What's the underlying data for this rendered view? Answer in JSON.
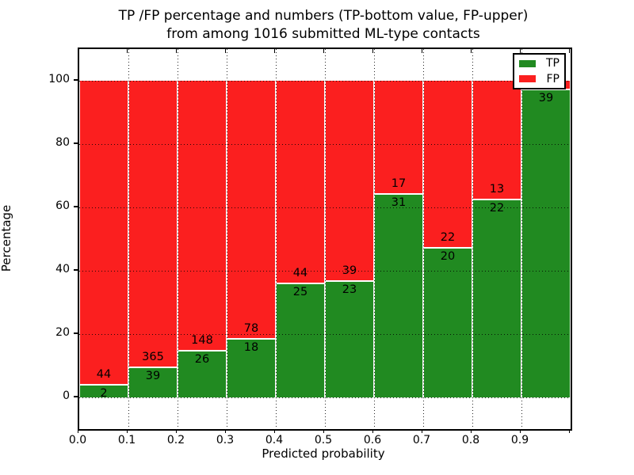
{
  "title": {
    "line1": "TP /FP percentage and numbers (TP-bottom value, FP-upper)",
    "line2": "from among 1016 submitted ML-type contacts"
  },
  "axes": {
    "x_label": "Predicted probability",
    "y_label": "Percentage"
  },
  "legend": {
    "items": [
      {
        "label": "TP",
        "color": "#218a21"
      },
      {
        "label": "FP",
        "color": "#fb1f1f"
      }
    ]
  },
  "chart_data": {
    "type": "bar",
    "stacked": true,
    "title": "TP /FP percentage and numbers (TP-bottom value, FP-upper) from among 1016 submitted ML-type contacts",
    "xlabel": "Predicted probability",
    "ylabel": "Percentage",
    "total_submitted": 1016,
    "xlim": [
      0.0,
      1.0
    ],
    "ylim": [
      -10,
      110
    ],
    "grid": "dotted, drawn over bars",
    "legend_position": "upper right",
    "bin_starts": [
      0.0,
      0.1,
      0.2,
      0.3,
      0.4,
      0.5,
      0.6,
      0.7,
      0.8,
      0.9
    ],
    "bin_width": 0.1,
    "series": [
      {
        "name": "TP",
        "color": "#218a21",
        "counts": [
          2,
          39,
          26,
          18,
          25,
          23,
          31,
          20,
          22,
          39
        ]
      },
      {
        "name": "FP",
        "color": "#fb1f1f",
        "counts": [
          44,
          365,
          148,
          78,
          44,
          39,
          17,
          22,
          13,
          null
        ]
      }
    ],
    "tp_percent": [
      4.35,
      9.65,
      14.94,
      18.75,
      36.23,
      37.1,
      64.58,
      47.62,
      62.86,
      97.5
    ],
    "tp_labels": [
      "2",
      "39",
      "26",
      "18",
      "25",
      "23",
      "31",
      "20",
      "22",
      "39"
    ],
    "fp_labels": [
      "44",
      "365",
      "148",
      "78",
      "44",
      "39",
      "17",
      "22",
      "13",
      ""
    ],
    "x_ticks": [
      {
        "pos": 0.0,
        "label": "0.0"
      },
      {
        "pos": 0.1,
        "label": "0.1"
      },
      {
        "pos": 0.2,
        "label": "0.2"
      },
      {
        "pos": 0.3,
        "label": "0.3"
      },
      {
        "pos": 0.4,
        "label": "0.4"
      },
      {
        "pos": 0.5,
        "label": "0.5"
      },
      {
        "pos": 0.6,
        "label": "0.6"
      },
      {
        "pos": 0.7,
        "label": "0.7"
      },
      {
        "pos": 0.8,
        "label": "0.8"
      },
      {
        "pos": 0.9,
        "label": "0.9"
      },
      {
        "pos": 1.0,
        "label": ""
      }
    ],
    "y_ticks": [
      {
        "pos": 0,
        "label": "0"
      },
      {
        "pos": 20,
        "label": "20"
      },
      {
        "pos": 40,
        "label": "40"
      },
      {
        "pos": 60,
        "label": "60"
      },
      {
        "pos": 80,
        "label": "80"
      },
      {
        "pos": 100,
        "label": "100"
      }
    ]
  }
}
